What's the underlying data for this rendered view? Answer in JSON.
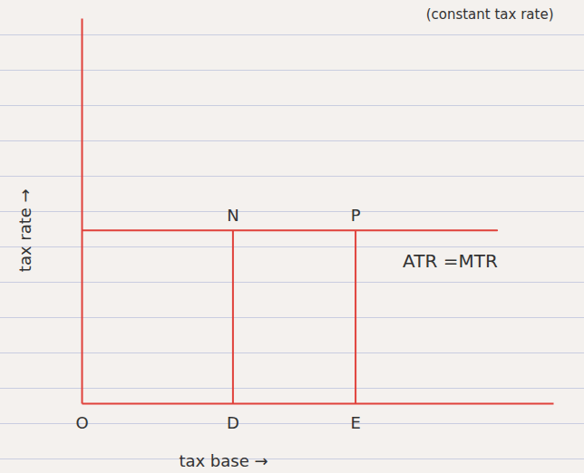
{
  "chart_data": {
    "type": "line",
    "annotation": "(constant tax rate)",
    "x_label": "tax base →",
    "y_label": "tax rate →",
    "xlim": [
      0,
      10
    ],
    "ylim": [
      0,
      10
    ],
    "tick_labels": false,
    "grid": false,
    "x": [
      0,
      8.8
    ],
    "series": [
      {
        "name": "ATR =MTR",
        "color": "#e0413a",
        "values": [
          4.5,
          4.5
        ]
      }
    ],
    "points": [
      {
        "label": "N",
        "x": 3.2,
        "y": 4.5
      },
      {
        "label": "P",
        "x": 5.8,
        "y": 4.5
      }
    ],
    "axis_points": [
      {
        "label": "O",
        "x": 0
      },
      {
        "label": "D",
        "x": 3.2
      },
      {
        "label": "E",
        "x": 5.8
      }
    ]
  }
}
